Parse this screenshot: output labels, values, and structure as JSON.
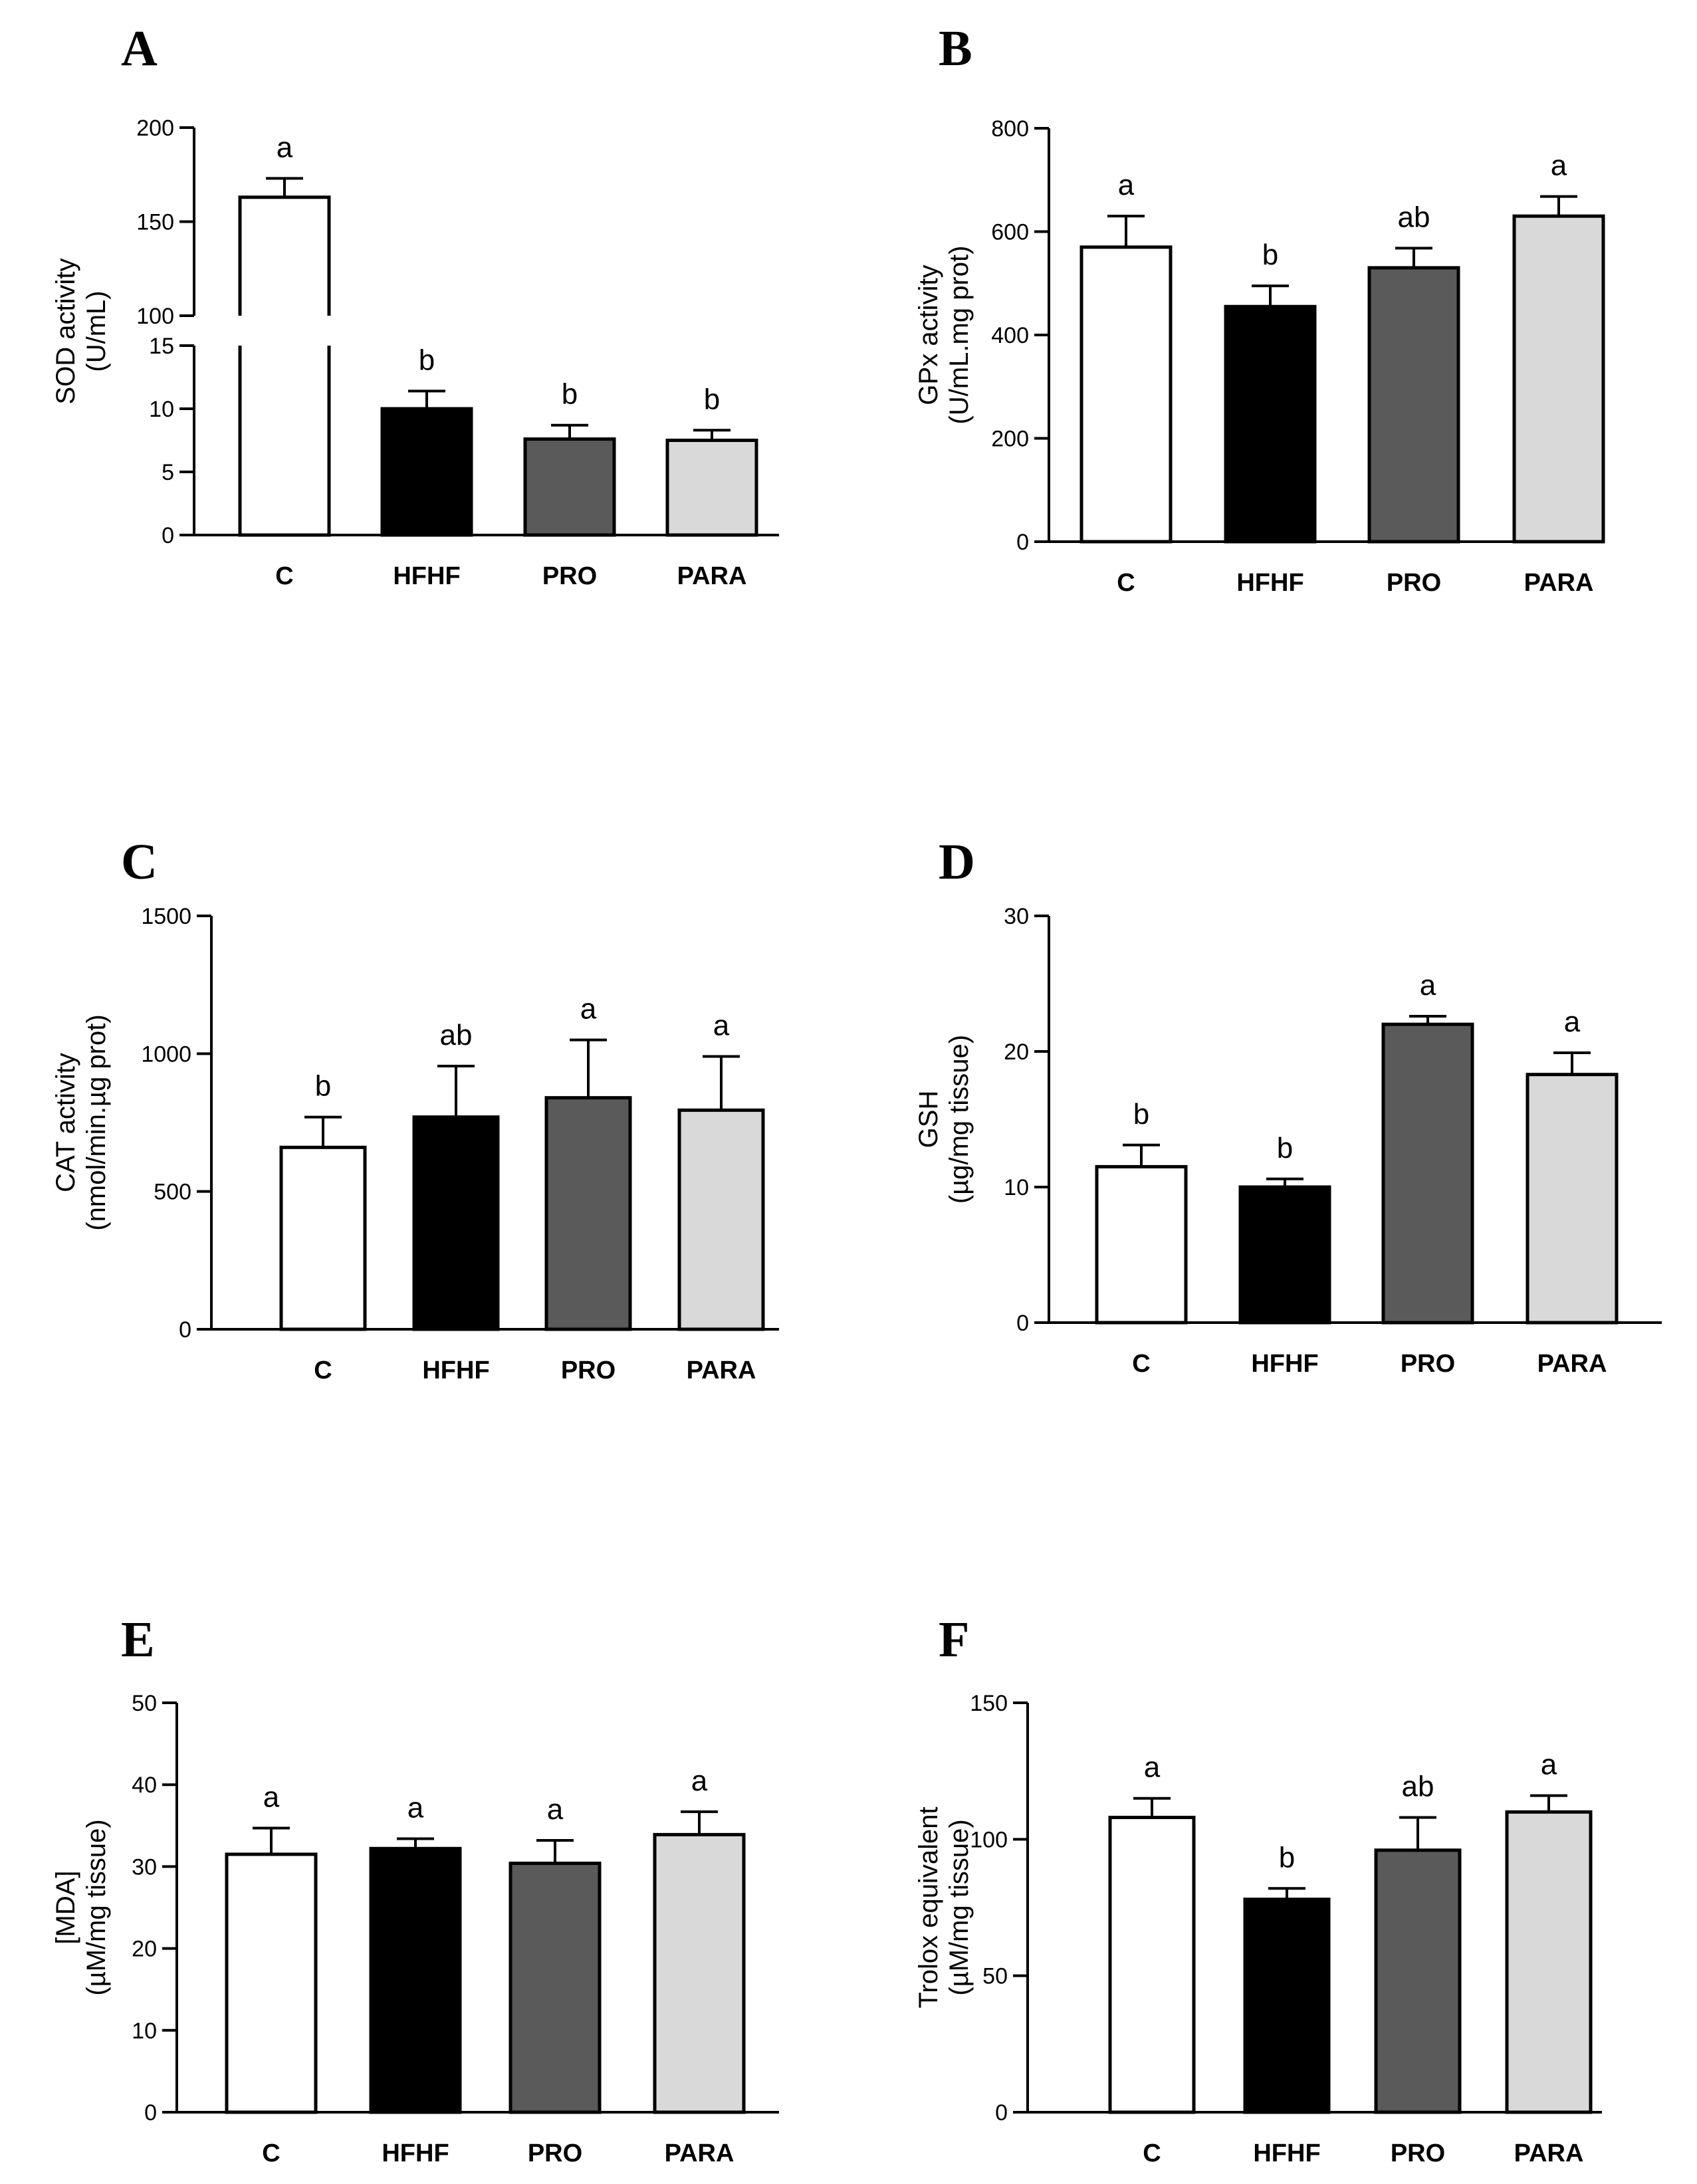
{
  "figure": {
    "categories": [
      "C",
      "HFHF",
      "PRO",
      "PARA"
    ],
    "group_colors": [
      "#ffffff",
      "#000000",
      "#5a5a5a",
      "#d9d9d9"
    ]
  },
  "chart_data": [
    {
      "panel": "A",
      "type": "bar",
      "categories": [
        "C",
        "HFHF",
        "PRO",
        "PARA"
      ],
      "values": [
        163,
        10,
        7.6,
        7.5
      ],
      "errors": [
        10,
        1.4,
        1.1,
        0.8
      ],
      "sig_letters": [
        "a",
        "b",
        "b",
        "b"
      ],
      "ylabel": [
        "SOD activity",
        "(U/mL)"
      ],
      "axis_break": true,
      "lower_segment": {
        "ylim": [
          0,
          15
        ],
        "ticks": [
          0,
          5,
          10,
          15
        ]
      },
      "upper_segment": {
        "ylim": [
          100,
          200
        ],
        "ticks": [
          100,
          150,
          200
        ]
      }
    },
    {
      "panel": "B",
      "type": "bar",
      "categories": [
        "C",
        "HFHF",
        "PRO",
        "PARA"
      ],
      "values": [
        570,
        455,
        530,
        630
      ],
      "errors": [
        60,
        40,
        38,
        38
      ],
      "sig_letters": [
        "a",
        "b",
        "ab",
        "a"
      ],
      "ylabel": [
        "GPx activity",
        "(U/mL.mg prot)"
      ],
      "ylim": [
        0,
        800
      ],
      "yticks": [
        0,
        200,
        400,
        600,
        800
      ]
    },
    {
      "panel": "C",
      "type": "bar",
      "categories": [
        "C",
        "HFHF",
        "PRO",
        "PARA"
      ],
      "values": [
        660,
        770,
        840,
        795
      ],
      "errors": [
        110,
        185,
        210,
        195
      ],
      "sig_letters": [
        "b",
        "ab",
        "a",
        "a"
      ],
      "ylabel": [
        "CAT activity",
        "(nmol/min.µg prot)"
      ],
      "ylim": [
        0,
        1500
      ],
      "yticks": [
        0,
        500,
        1000,
        1500
      ]
    },
    {
      "panel": "D",
      "type": "bar",
      "categories": [
        "C",
        "HFHF",
        "PRO",
        "PARA"
      ],
      "values": [
        11.5,
        10.0,
        22.0,
        18.3
      ],
      "errors": [
        1.6,
        0.6,
        0.6,
        1.6
      ],
      "sig_letters": [
        "b",
        "b",
        "a",
        "a"
      ],
      "ylabel": [
        "GSH",
        "(µg/mg tissue)"
      ],
      "ylim": [
        0,
        30
      ],
      "yticks": [
        0,
        10,
        20,
        30
      ]
    },
    {
      "panel": "E",
      "type": "bar",
      "categories": [
        "C",
        "HFHF",
        "PRO",
        "PARA"
      ],
      "values": [
        31.5,
        32.2,
        30.4,
        33.9
      ],
      "errors": [
        3.2,
        1.2,
        2.8,
        2.8
      ],
      "sig_letters": [
        "a",
        "a",
        "a",
        "a"
      ],
      "ylabel": [
        "[MDA]",
        "(µM/mg tissue)"
      ],
      "ylim": [
        0,
        50
      ],
      "yticks": [
        0,
        10,
        20,
        30,
        40,
        50
      ]
    },
    {
      "panel": "F",
      "type": "bar",
      "categories": [
        "C",
        "HFHF",
        "PRO",
        "PARA"
      ],
      "values": [
        108,
        78,
        96,
        110
      ],
      "errors": [
        7,
        4,
        12,
        6
      ],
      "sig_letters": [
        "a",
        "b",
        "ab",
        "a"
      ],
      "ylabel": [
        "Trolox equivalent",
        "(µM/mg tissue)"
      ],
      "ylim": [
        0,
        150
      ],
      "yticks": [
        0,
        50,
        100,
        150
      ]
    }
  ]
}
